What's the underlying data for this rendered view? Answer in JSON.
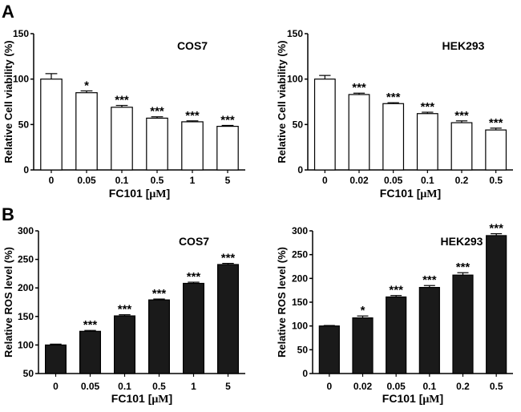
{
  "panel_labels": [
    "A",
    "B"
  ],
  "chart_data": [
    {
      "panel": "A",
      "type": "bar",
      "title": "COS7",
      "xlabel_prefix": "FC101 [",
      "xlabel_unit": "μM",
      "xlabel_suffix": "]",
      "ylabel": "Relative Cell viability (%)",
      "ylim": [
        0,
        150
      ],
      "yticks": [
        0,
        50,
        100,
        150
      ],
      "categories": [
        "0",
        "0.05",
        "0.1",
        "0.5",
        "1",
        "5"
      ],
      "values": [
        100,
        85,
        69,
        57,
        53,
        48
      ],
      "errors": [
        6,
        2,
        2,
        1.5,
        1,
        1
      ],
      "significance": [
        "",
        "*",
        "***",
        "***",
        "***",
        "***"
      ],
      "bar_color": "#ffffff"
    },
    {
      "panel": "A",
      "type": "bar",
      "title": "HEK293",
      "xlabel_prefix": "FC101 [",
      "xlabel_unit": "μM",
      "xlabel_suffix": "]",
      "ylabel": "Relative Cell viability (%)",
      "ylim": [
        0,
        150
      ],
      "yticks": [
        0,
        50,
        100,
        150
      ],
      "categories": [
        "0",
        "0.02",
        "0.05",
        "0.1",
        "0.2",
        "0.5"
      ],
      "values": [
        100,
        83,
        73,
        62,
        52,
        44
      ],
      "errors": [
        4,
        1.5,
        1,
        1.5,
        2,
        2
      ],
      "significance": [
        "",
        "***",
        "***",
        "***",
        "***",
        "***"
      ],
      "bar_color": "#ffffff"
    },
    {
      "panel": "B",
      "type": "bar",
      "title": "COS7",
      "xlabel_prefix": "FC101 [",
      "xlabel_unit": "μM",
      "xlabel_suffix": "]",
      "ylabel": "Relative ROS level (%)",
      "ylim": [
        50,
        300
      ],
      "yticks": [
        50,
        100,
        150,
        200,
        250,
        300
      ],
      "categories": [
        "0",
        "0.05",
        "0.1",
        "0.5",
        "1",
        "5"
      ],
      "values": [
        100,
        124,
        151,
        179,
        208,
        241
      ],
      "errors": [
        1.5,
        1.5,
        2,
        1.5,
        2,
        2
      ],
      "significance": [
        "",
        "***",
        "***",
        "***",
        "***",
        "***"
      ],
      "bar_color": "#1a1a1a"
    },
    {
      "panel": "B",
      "type": "bar",
      "title": "HEK293",
      "xlabel_prefix": "FC101 [",
      "xlabel_unit": "μM",
      "xlabel_suffix": "]",
      "ylabel": "Relative ROS level (%)",
      "ylim": [
        0,
        300
      ],
      "yticks": [
        0,
        50,
        100,
        150,
        200,
        250,
        300
      ],
      "categories": [
        "0",
        "0.02",
        "0.05",
        "0.1",
        "0.2",
        "0.5"
      ],
      "values": [
        100,
        117,
        161,
        181,
        207,
        290
      ],
      "errors": [
        1,
        4,
        3,
        4,
        5,
        4
      ],
      "significance": [
        "",
        "*",
        "***",
        "***",
        "***",
        "***"
      ],
      "bar_color": "#1a1a1a"
    }
  ]
}
